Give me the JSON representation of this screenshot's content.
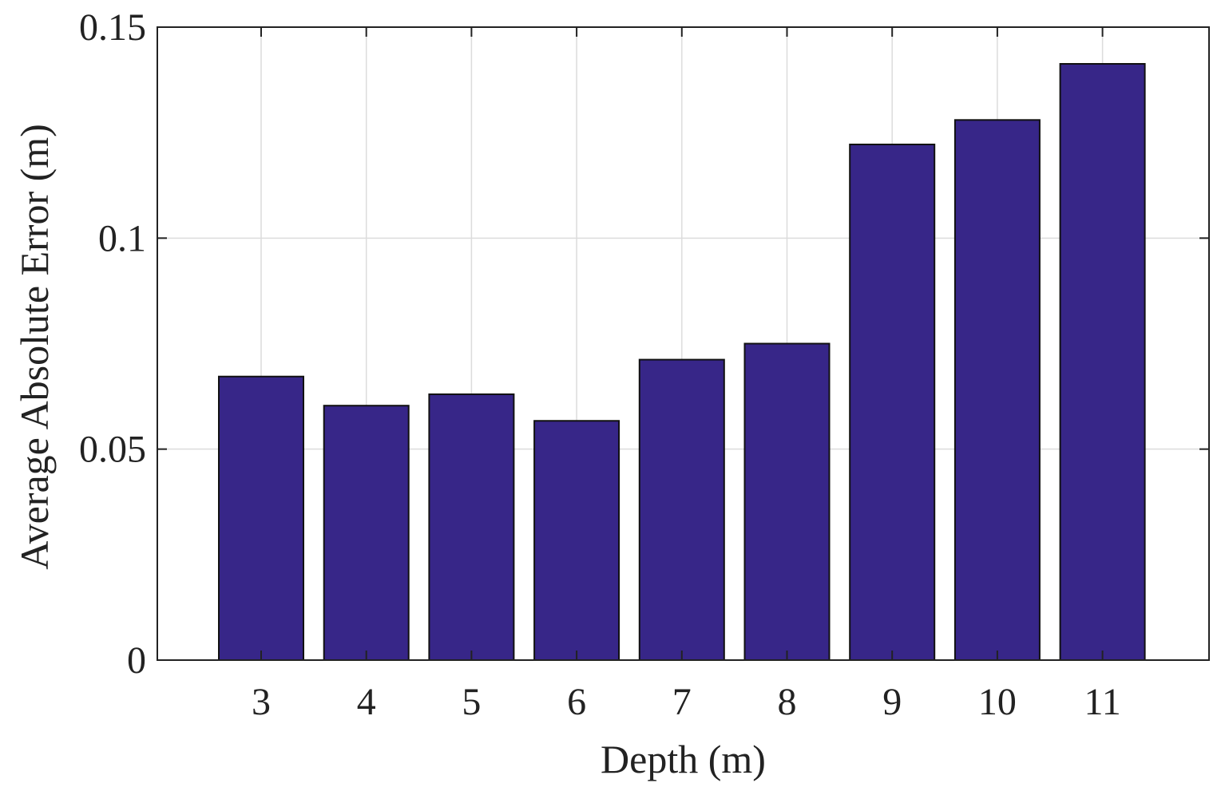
{
  "chart_data": {
    "type": "bar",
    "categories": [
      "3",
      "4",
      "5",
      "6",
      "7",
      "8",
      "9",
      "10",
      "11"
    ],
    "values": [
      0.0672,
      0.0603,
      0.063,
      0.0567,
      0.0712,
      0.075,
      0.1222,
      0.128,
      0.1413
    ],
    "xlabel": "Depth (m)",
    "ylabel": "Average Absolute Error (m)",
    "ylim": [
      0,
      0.15
    ],
    "yticks": [
      0,
      0.05,
      0.1,
      0.15
    ],
    "ytick_labels": [
      "0",
      "0.05",
      "0.1",
      "0.15"
    ],
    "grid": true,
    "colors": {
      "bar": "#372688",
      "bar_edge": "#111111",
      "grid": "#dcdcdc",
      "axis": "#222222"
    }
  }
}
